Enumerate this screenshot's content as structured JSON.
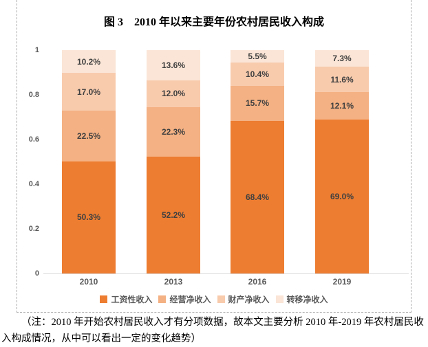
{
  "figure": {
    "title": "图 3　2010 年以来主要年份农村居民收入构成",
    "note": "（注：2010 年开始农村居民收入才有分项数据，故本文主要分析 2010 年-2019 年农村居民收入构成情况，从中可以看出一定的变化趋势）"
  },
  "colors": {
    "series_wage": "#ED7D31",
    "series_operating": "#F4B183",
    "series_property": "#F8CBAD",
    "series_transfer": "#FBE5D6",
    "axis_text": "#595959",
    "data_label": "#404040",
    "axis_line": "#D9D9D9"
  },
  "chart_data": {
    "type": "bar",
    "stacked": true,
    "title": "图 3　2010 年以来主要年份农村居民收入构成",
    "categories": [
      "2010",
      "2013",
      "2016",
      "2019"
    ],
    "series": [
      {
        "name": "工资性收入",
        "color": "#ED7D31",
        "values": [
          0.503,
          0.522,
          0.684,
          0.69
        ],
        "labels": [
          "50.3%",
          "52.2%",
          "68.4%",
          "69.0%"
        ]
      },
      {
        "name": "经营净收入",
        "color": "#F4B183",
        "values": [
          0.225,
          0.223,
          0.157,
          0.121
        ],
        "labels": [
          "22.5%",
          "22.3%",
          "15.7%",
          "12.1%"
        ]
      },
      {
        "name": "财产净收入",
        "color": "#F8CBAD",
        "values": [
          0.17,
          0.12,
          0.104,
          0.116
        ],
        "labels": [
          "17.0%",
          "12.0%",
          "10.4%",
          "11.6%"
        ]
      },
      {
        "name": "转移净收入",
        "color": "#FBE5D6",
        "values": [
          0.102,
          0.136,
          0.055,
          0.073
        ],
        "labels": [
          "10.2%",
          "13.6%",
          "5.5%",
          "7.3%"
        ]
      }
    ],
    "y_ticks": [
      {
        "label": "1",
        "value": 1.0
      },
      {
        "label": "0.8",
        "value": 0.8
      },
      {
        "label": "0.6",
        "value": 0.6
      },
      {
        "label": "0.4",
        "value": 0.4
      },
      {
        "label": "0.2",
        "value": 0.2
      },
      {
        "label": "0",
        "value": 0.0
      }
    ],
    "ylim": [
      0,
      1
    ],
    "grid": false,
    "legend_position": "bottom",
    "xlabel": "",
    "ylabel": ""
  }
}
